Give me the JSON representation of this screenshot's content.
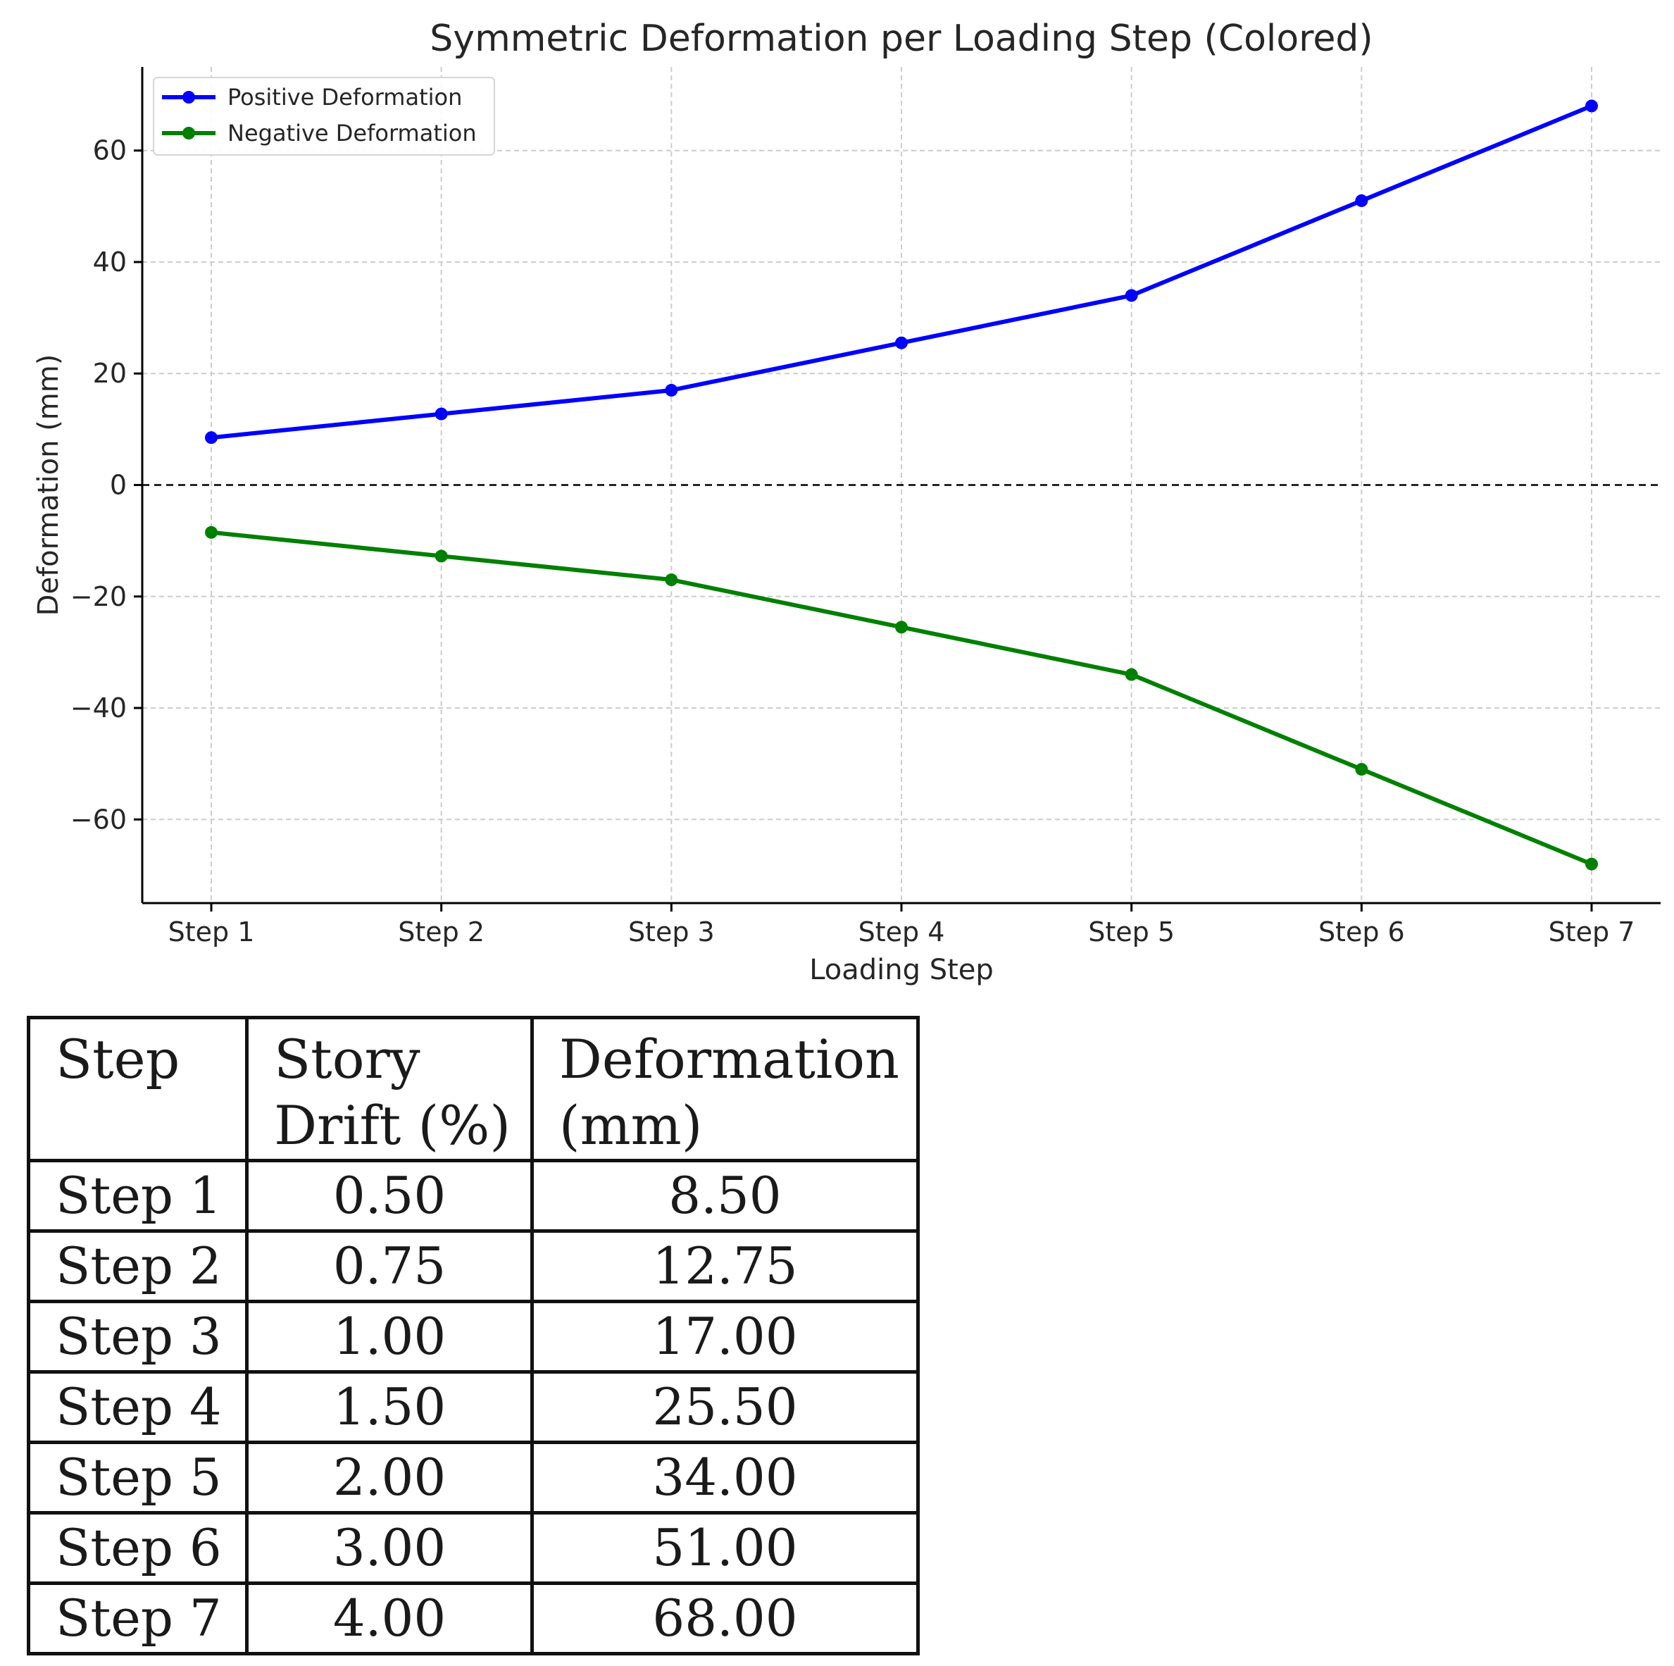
{
  "chart_data": {
    "type": "line",
    "title": "Symmetric Deformation per Loading Step (Colored)",
    "xlabel": "Loading Step",
    "ylabel": "Deformation (mm)",
    "categories": [
      "Step 1",
      "Step 2",
      "Step 3",
      "Step 4",
      "Step 5",
      "Step 6",
      "Step 7"
    ],
    "ylim": [
      -75,
      75
    ],
    "yticks": [
      60,
      40,
      20,
      0,
      -20,
      -40,
      -60
    ],
    "ytick_labels": [
      "60",
      "40",
      "20",
      "0",
      "−20",
      "−40",
      "−60"
    ],
    "grid": true,
    "zero_line": "dashed",
    "legend_position": "upper-left",
    "series": [
      {
        "name": "Positive Deformation",
        "color": "#0000ff",
        "values": [
          8.5,
          12.75,
          17.0,
          25.5,
          34.0,
          51.0,
          68.0
        ]
      },
      {
        "name": "Negative Deformation",
        "color": "#008000",
        "values": [
          -8.5,
          -12.75,
          -17.0,
          -25.5,
          -34.0,
          -51.0,
          -68.0
        ]
      }
    ]
  },
  "table": {
    "headers": [
      "Step",
      "Story Drift (%)",
      "Deformation (mm)"
    ],
    "header_lines": [
      [
        "Step"
      ],
      [
        "Story",
        "Drift (%)"
      ],
      [
        "Deformation",
        "(mm)"
      ]
    ],
    "rows": [
      [
        "Step 1",
        "0.50",
        "8.50"
      ],
      [
        "Step 2",
        "0.75",
        "12.75"
      ],
      [
        "Step 3",
        "1.00",
        "17.00"
      ],
      [
        "Step 4",
        "1.50",
        "25.50"
      ],
      [
        "Step 5",
        "2.00",
        "34.00"
      ],
      [
        "Step 6",
        "3.00",
        "51.00"
      ],
      [
        "Step 7",
        "4.00",
        "68.00"
      ]
    ]
  }
}
